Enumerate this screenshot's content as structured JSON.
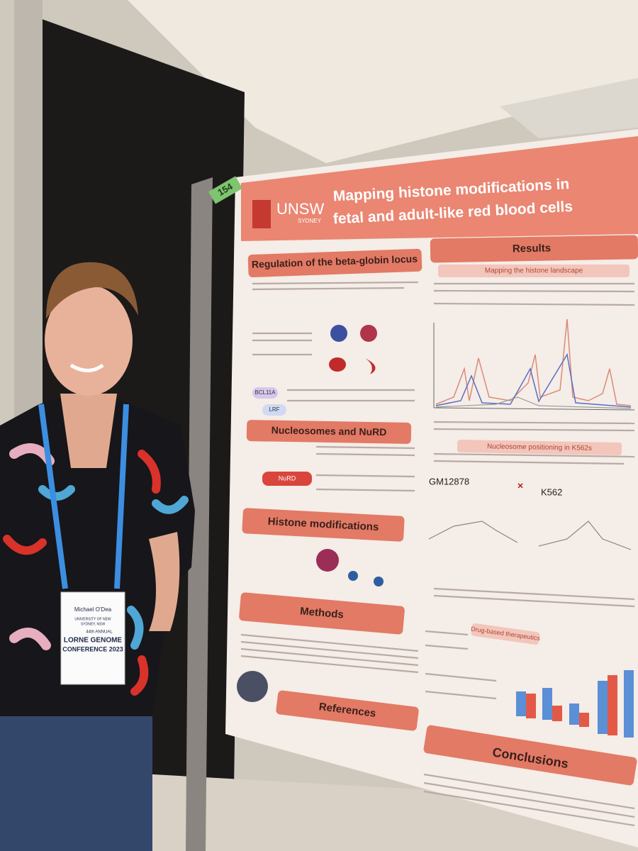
{
  "poster": {
    "number": "154",
    "institution": "UNSW",
    "institution_sub": "SYDNEY",
    "title": [
      "Mapping histone modifications in",
      "fetal and adult-like red blood cells"
    ],
    "left_sections": [
      "Regulation of the beta-globin locus",
      "Nucleosomes and NuRD",
      "Histone modifications",
      "Methods",
      "References"
    ],
    "right_sections": [
      "Results",
      "Conclusions"
    ],
    "subsections": [
      "Mapping the histone landscape",
      "Nucleosome positioning in K562s",
      "Drug-based therapeutics"
    ],
    "labels": [
      "BCL11A",
      "LRF",
      "NuRD",
      "GM12878",
      "K562"
    ]
  },
  "badge": {
    "name": "Michael O'Dea",
    "affiliation": [
      "UNIVERSITY OF NEW",
      "SYDNEY, NSW"
    ],
    "event": [
      "44th ANNUAL",
      "LORNE GENOME",
      "CONFERENCE 2023"
    ]
  }
}
